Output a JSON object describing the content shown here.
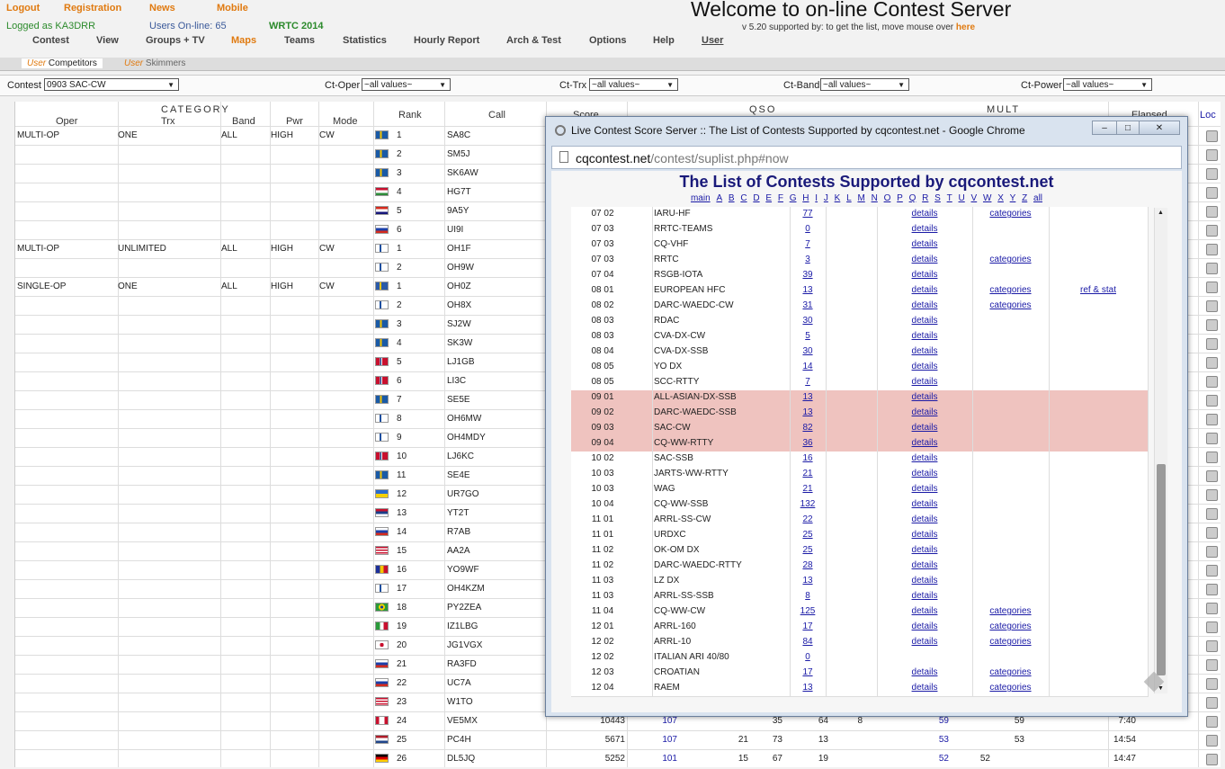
{
  "header": {
    "links": [
      "Logout",
      "Registration",
      "News",
      "Mobile"
    ],
    "logged_as": "Logged as KA3DRR",
    "users_online": "Users On-line: 65",
    "wrtc": "WRTC 2014",
    "title": "Welcome to on-line Contest Server",
    "version": "v 5.20 supported by: to get the list, move mouse over",
    "here": "here"
  },
  "menu": [
    "Contest",
    "View",
    "Groups + TV",
    "Maps",
    "Teams",
    "Statistics",
    "Hourly Report",
    "Arch & Test",
    "Options",
    "Help",
    "User"
  ],
  "subtabs": [
    {
      "prefix": "User",
      "label": "Competitors"
    },
    {
      "prefix": "User",
      "label": "Skimmers"
    }
  ],
  "filters": {
    "contest_label": "Contest",
    "contest_value": "0903 SAC-CW",
    "oper_label": "Ct-Oper",
    "oper_value": "~all values~",
    "trx_label": "Ct-Trx",
    "trx_value": "~all values~",
    "band_label": "Ct-Band",
    "band_value": "~all values~",
    "power_label": "Ct-Power",
    "power_value": "~all values~"
  },
  "grid_headers": {
    "category": "CATEGORY",
    "oper": "Oper",
    "trx": "Trx",
    "band": "Band",
    "pwr": "Pwr",
    "mode": "Mode",
    "rank": "Rank",
    "call": "Call",
    "score": "Score",
    "qso": "QSO",
    "mult": "MULT",
    "elapsed": "Elapsed",
    "loc": "Loc"
  },
  "rows": [
    {
      "oper": "MULTI-OP",
      "trx": "ONE",
      "band": "ALL",
      "pwr": "HIGH",
      "mode": "CW",
      "rank": "1",
      "call": "SA8C",
      "flag": "se"
    },
    {
      "oper": "",
      "trx": "",
      "band": "",
      "pwr": "",
      "mode": "",
      "rank": "2",
      "call": "SM5J",
      "flag": "se"
    },
    {
      "oper": "",
      "trx": "",
      "band": "",
      "pwr": "",
      "mode": "",
      "rank": "3",
      "call": "SK6AW",
      "flag": "se"
    },
    {
      "oper": "",
      "trx": "",
      "band": "",
      "pwr": "",
      "mode": "",
      "rank": "4",
      "call": "HG7T",
      "flag": "hu"
    },
    {
      "oper": "",
      "trx": "",
      "band": "",
      "pwr": "",
      "mode": "",
      "rank": "5",
      "call": "9A5Y",
      "flag": "hr"
    },
    {
      "oper": "",
      "trx": "",
      "band": "",
      "pwr": "",
      "mode": "",
      "rank": "6",
      "call": "UI9I",
      "flag": "ru"
    },
    {
      "oper": "MULTI-OP",
      "trx": "UNLIMITED",
      "band": "ALL",
      "pwr": "HIGH",
      "mode": "CW",
      "rank": "1",
      "call": "OH1F",
      "flag": "fi"
    },
    {
      "oper": "",
      "trx": "",
      "band": "",
      "pwr": "",
      "mode": "",
      "rank": "2",
      "call": "OH9W",
      "flag": "fi"
    },
    {
      "oper": "SINGLE-OP",
      "trx": "ONE",
      "band": "ALL",
      "pwr": "HIGH",
      "mode": "CW",
      "rank": "1",
      "call": "OH0Z",
      "flag": "ax"
    },
    {
      "oper": "",
      "trx": "",
      "band": "",
      "pwr": "",
      "mode": "",
      "rank": "2",
      "call": "OH8X",
      "flag": "fi"
    },
    {
      "oper": "",
      "trx": "",
      "band": "",
      "pwr": "",
      "mode": "",
      "rank": "3",
      "call": "SJ2W",
      "flag": "se"
    },
    {
      "oper": "",
      "trx": "",
      "band": "",
      "pwr": "",
      "mode": "",
      "rank": "4",
      "call": "SK3W",
      "flag": "se"
    },
    {
      "oper": "",
      "trx": "",
      "band": "",
      "pwr": "",
      "mode": "",
      "rank": "5",
      "call": "LJ1GB",
      "flag": "no"
    },
    {
      "oper": "",
      "trx": "",
      "band": "",
      "pwr": "",
      "mode": "",
      "rank": "6",
      "call": "LI3C",
      "flag": "no"
    },
    {
      "oper": "",
      "trx": "",
      "band": "",
      "pwr": "",
      "mode": "",
      "rank": "7",
      "call": "SE5E",
      "flag": "se"
    },
    {
      "oper": "",
      "trx": "",
      "band": "",
      "pwr": "",
      "mode": "",
      "rank": "8",
      "call": "OH6MW",
      "flag": "fi"
    },
    {
      "oper": "",
      "trx": "",
      "band": "",
      "pwr": "",
      "mode": "",
      "rank": "9",
      "call": "OH4MDY",
      "flag": "fi"
    },
    {
      "oper": "",
      "trx": "",
      "band": "",
      "pwr": "",
      "mode": "",
      "rank": "10",
      "call": "LJ6KC",
      "flag": "no"
    },
    {
      "oper": "",
      "trx": "",
      "band": "",
      "pwr": "",
      "mode": "",
      "rank": "11",
      "call": "SE4E",
      "flag": "se"
    },
    {
      "oper": "",
      "trx": "",
      "band": "",
      "pwr": "",
      "mode": "",
      "rank": "12",
      "call": "UR7GO",
      "flag": "ua"
    },
    {
      "oper": "",
      "trx": "",
      "band": "",
      "pwr": "",
      "mode": "",
      "rank": "13",
      "call": "YT2T",
      "flag": "rs"
    },
    {
      "oper": "",
      "trx": "",
      "band": "",
      "pwr": "",
      "mode": "",
      "rank": "14",
      "call": "R7AB",
      "flag": "ru"
    },
    {
      "oper": "",
      "trx": "",
      "band": "",
      "pwr": "",
      "mode": "",
      "rank": "15",
      "call": "AA2A",
      "flag": "us"
    },
    {
      "oper": "",
      "trx": "",
      "band": "",
      "pwr": "",
      "mode": "",
      "rank": "16",
      "call": "YO9WF",
      "flag": "ro"
    },
    {
      "oper": "",
      "trx": "",
      "band": "",
      "pwr": "",
      "mode": "",
      "rank": "17",
      "call": "OH4KZM",
      "flag": "fi"
    },
    {
      "oper": "",
      "trx": "",
      "band": "",
      "pwr": "",
      "mode": "",
      "rank": "18",
      "call": "PY2ZEA",
      "flag": "br"
    },
    {
      "oper": "",
      "trx": "",
      "band": "",
      "pwr": "",
      "mode": "",
      "rank": "19",
      "call": "IZ1LBG",
      "flag": "it"
    },
    {
      "oper": "",
      "trx": "",
      "band": "",
      "pwr": "",
      "mode": "",
      "rank": "20",
      "call": "JG1VGX",
      "flag": "jp"
    },
    {
      "oper": "",
      "trx": "",
      "band": "",
      "pwr": "",
      "mode": "",
      "rank": "21",
      "call": "RA3FD",
      "flag": "ru"
    },
    {
      "oper": "",
      "trx": "",
      "band": "",
      "pwr": "",
      "mode": "",
      "rank": "22",
      "call": "UC7A",
      "flag": "ru"
    },
    {
      "oper": "",
      "trx": "",
      "band": "",
      "pwr": "",
      "mode": "",
      "rank": "23",
      "call": "W1TO",
      "flag": "us"
    },
    {
      "oper": "",
      "trx": "",
      "band": "",
      "pwr": "",
      "mode": "",
      "rank": "24",
      "call": "VE5MX",
      "flag": "ca",
      "score": "10443",
      "q1": "107",
      "q2": "",
      "q3": "35",
      "q4": "64",
      "q5": "8",
      "m1": "59",
      "m2": "",
      "m3": "59",
      "elapsed": "7:40"
    },
    {
      "oper": "",
      "trx": "",
      "band": "",
      "pwr": "",
      "mode": "",
      "rank": "25",
      "call": "PC4H",
      "flag": "nl",
      "score": "5671",
      "q1": "107",
      "q2": "21",
      "q3": "73",
      "q4": "13",
      "q5": "",
      "m1": "53",
      "m2": "",
      "m3": "53",
      "elapsed": "14:54"
    },
    {
      "oper": "",
      "trx": "",
      "band": "",
      "pwr": "",
      "mode": "",
      "rank": "26",
      "call": "DL5JQ",
      "flag": "de",
      "score": "5252",
      "q1": "101",
      "q2": "15",
      "q3": "67",
      "q4": "19",
      "q5": "",
      "m1": "52",
      "m2": "52",
      "m3": "",
      "elapsed": "14:47"
    }
  ],
  "popup": {
    "window_title": "Live Contest Score Server :: The List of Contests Supported by cqcontest.net - Google Chrome",
    "url_host": "cqcontest.net",
    "url_path": "/contest/suplist.php#now",
    "heading": "The List of Contests Supported by cqcontest.net",
    "letters": [
      "main",
      "A",
      "B",
      "C",
      "D",
      "E",
      "F",
      "G",
      "H",
      "I",
      "J",
      "K",
      "L",
      "M",
      "N",
      "O",
      "P",
      "Q",
      "R",
      "S",
      "T",
      "U",
      "V",
      "W",
      "X",
      "Y",
      "Z",
      "all"
    ],
    "rows": [
      {
        "date": "07 02",
        "name": "IARU-HF",
        "count": "77",
        "details": "details",
        "cat": "categories",
        "ref": "",
        "hl": false
      },
      {
        "date": "07 03",
        "name": "RRTC-TEAMS",
        "count": "0",
        "details": "details",
        "cat": "",
        "ref": "",
        "hl": false
      },
      {
        "date": "07 03",
        "name": "CQ-VHF",
        "count": "7",
        "details": "details",
        "cat": "",
        "ref": "",
        "hl": false
      },
      {
        "date": "07 03",
        "name": "RRTC",
        "count": "3",
        "details": "details",
        "cat": "categories",
        "ref": "",
        "hl": false
      },
      {
        "date": "07 04",
        "name": "RSGB-IOTA",
        "count": "39",
        "details": "details",
        "cat": "",
        "ref": "",
        "hl": false
      },
      {
        "date": "08 01",
        "name": "EUROPEAN HFC",
        "count": "13",
        "details": "details",
        "cat": "categories",
        "ref": "ref & stat",
        "hl": false
      },
      {
        "date": "08 02",
        "name": "DARC-WAEDC-CW",
        "count": "31",
        "details": "details",
        "cat": "categories",
        "ref": "",
        "hl": false
      },
      {
        "date": "08 03",
        "name": "RDAC",
        "count": "30",
        "details": "details",
        "cat": "",
        "ref": "",
        "hl": false
      },
      {
        "date": "08 03",
        "name": "CVA-DX-CW",
        "count": "5",
        "details": "details",
        "cat": "",
        "ref": "",
        "hl": false
      },
      {
        "date": "08 04",
        "name": "CVA-DX-SSB",
        "count": "30",
        "details": "details",
        "cat": "",
        "ref": "",
        "hl": false
      },
      {
        "date": "08 05",
        "name": "YO DX",
        "count": "14",
        "details": "details",
        "cat": "",
        "ref": "",
        "hl": false
      },
      {
        "date": "08 05",
        "name": "SCC-RTTY",
        "count": "7",
        "details": "details",
        "cat": "",
        "ref": "",
        "hl": false
      },
      {
        "date": "09 01",
        "name": "ALL-ASIAN-DX-SSB",
        "count": "13",
        "details": "details",
        "cat": "",
        "ref": "",
        "hl": true
      },
      {
        "date": "09 02",
        "name": "DARC-WAEDC-SSB",
        "count": "13",
        "details": "details",
        "cat": "",
        "ref": "",
        "hl": true
      },
      {
        "date": "09 03",
        "name": "SAC-CW",
        "count": "82",
        "details": "details",
        "cat": "",
        "ref": "",
        "hl": true
      },
      {
        "date": "09 04",
        "name": "CQ-WW-RTTY",
        "count": "36",
        "details": "details",
        "cat": "",
        "ref": "",
        "hl": true
      },
      {
        "date": "10 02",
        "name": "SAC-SSB",
        "count": "16",
        "details": "details",
        "cat": "",
        "ref": "",
        "hl": false
      },
      {
        "date": "10 03",
        "name": "JARTS-WW-RTTY",
        "count": "21",
        "details": "details",
        "cat": "",
        "ref": "",
        "hl": false
      },
      {
        "date": "10 03",
        "name": "WAG",
        "count": "21",
        "details": "details",
        "cat": "",
        "ref": "",
        "hl": false
      },
      {
        "date": "10 04",
        "name": "CQ-WW-SSB",
        "count": "132",
        "details": "details",
        "cat": "",
        "ref": "",
        "hl": false
      },
      {
        "date": "11 01",
        "name": "ARRL-SS-CW",
        "count": "22",
        "details": "details",
        "cat": "",
        "ref": "",
        "hl": false
      },
      {
        "date": "11 01",
        "name": "URDXC",
        "count": "25",
        "details": "details",
        "cat": "",
        "ref": "",
        "hl": false
      },
      {
        "date": "11 02",
        "name": "OK-OM DX",
        "count": "25",
        "details": "details",
        "cat": "",
        "ref": "",
        "hl": false
      },
      {
        "date": "11 02",
        "name": "DARC-WAEDC-RTTY",
        "count": "28",
        "details": "details",
        "cat": "",
        "ref": "",
        "hl": false
      },
      {
        "date": "11 03",
        "name": "LZ DX",
        "count": "13",
        "details": "details",
        "cat": "",
        "ref": "",
        "hl": false
      },
      {
        "date": "11 03",
        "name": "ARRL-SS-SSB",
        "count": "8",
        "details": "details",
        "cat": "",
        "ref": "",
        "hl": false
      },
      {
        "date": "11 04",
        "name": "CQ-WW-CW",
        "count": "125",
        "details": "details",
        "cat": "categories",
        "ref": "",
        "hl": false
      },
      {
        "date": "12 01",
        "name": "ARRL-160",
        "count": "17",
        "details": "details",
        "cat": "categories",
        "ref": "",
        "hl": false
      },
      {
        "date": "12 02",
        "name": "ARRL-10",
        "count": "84",
        "details": "details",
        "cat": "categories",
        "ref": "",
        "hl": false
      },
      {
        "date": "12 02",
        "name": "ITALIAN ARI 40/80",
        "count": "0",
        "details": "",
        "cat": "",
        "ref": "",
        "hl": false
      },
      {
        "date": "12 03",
        "name": "CROATIAN",
        "count": "17",
        "details": "details",
        "cat": "categories",
        "ref": "",
        "hl": false
      },
      {
        "date": "12 04",
        "name": "RAEM",
        "count": "13",
        "details": "details",
        "cat": "categories",
        "ref": "",
        "hl": false
      }
    ]
  }
}
